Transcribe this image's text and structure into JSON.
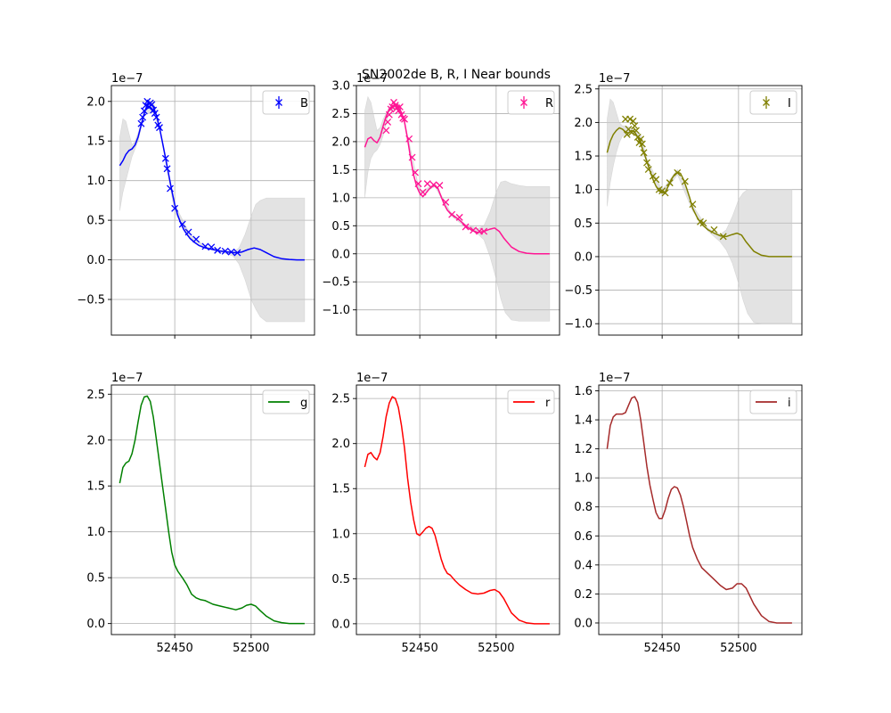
{
  "figure": {
    "title": "SN2002de  B, R, I Near bounds"
  },
  "chart_data": [
    {
      "type": "line",
      "panel": "top-left",
      "title": "",
      "xlabel": "",
      "ylabel": "",
      "xlim": [
        52411,
        537
      ],
      "ylim": [
        -0.95,
        2.2
      ],
      "scale_label": "1e−7",
      "yticks": [
        -0.5,
        0.0,
        0.5,
        1.0,
        1.5,
        2.0
      ],
      "yticklabels": [
        "−0.5",
        "0.0",
        "0.5",
        "1.0",
        "1.5",
        "2.0"
      ],
      "xticks": [
        52450,
        52500
      ],
      "xticklabels": [
        "",
        ""
      ],
      "grid": true,
      "legend": "top-right",
      "color": "#0000ff",
      "label": "B",
      "marker": "x",
      "points_x": [
        52428,
        52429,
        52430,
        52431,
        52432,
        52433,
        52434,
        52435,
        52436,
        52437,
        52438,
        52439,
        52440,
        52444,
        52445,
        52447,
        52450,
        52455,
        52459,
        52464,
        52470,
        52474,
        52478,
        52483,
        52487,
        52491
      ],
      "points_y": [
        1.72,
        1.8,
        1.88,
        1.95,
        2.0,
        1.93,
        1.98,
        1.96,
        1.89,
        1.85,
        1.8,
        1.7,
        1.67,
        1.28,
        1.15,
        0.9,
        0.65,
        0.45,
        0.35,
        0.26,
        0.17,
        0.16,
        0.12,
        0.11,
        0.1,
        0.09
      ],
      "curve_x": [
        52414,
        52416,
        52418,
        52420,
        52422,
        52424,
        52426,
        52428,
        52430,
        52432,
        52434,
        52436,
        52438,
        52440,
        52442,
        52444,
        52446,
        52448,
        52450,
        52452,
        52454,
        52456,
        52458,
        52460,
        52463,
        52466,
        52470,
        52475,
        52480,
        52485,
        52490,
        52494,
        52498,
        52502,
        52506,
        52510,
        52515,
        52520,
        52525,
        52530,
        52535
      ],
      "curve_y": [
        1.19,
        1.25,
        1.33,
        1.38,
        1.4,
        1.45,
        1.55,
        1.7,
        1.85,
        1.96,
        1.98,
        1.93,
        1.82,
        1.67,
        1.48,
        1.28,
        1.08,
        0.88,
        0.7,
        0.56,
        0.46,
        0.38,
        0.32,
        0.27,
        0.22,
        0.18,
        0.15,
        0.13,
        0.11,
        0.1,
        0.09,
        0.1,
        0.13,
        0.15,
        0.13,
        0.09,
        0.04,
        0.015,
        0.005,
        0.0,
        0.0
      ],
      "band_x": [
        52414,
        52416,
        52418,
        52420,
        52422,
        52424,
        52426,
        52430,
        52436,
        52440,
        52450,
        52460,
        52470,
        52480,
        52488,
        52492,
        52496,
        52500,
        52503,
        52506,
        52510,
        52515,
        52520,
        52525,
        52530,
        52535
      ],
      "band_upper": [
        1.55,
        1.78,
        1.75,
        1.6,
        1.45,
        1.5,
        1.6,
        1.87,
        2.0,
        1.68,
        0.7,
        0.32,
        0.17,
        0.12,
        0.1,
        0.15,
        0.32,
        0.55,
        0.7,
        0.75,
        0.78,
        0.78,
        0.78,
        0.78,
        0.78,
        0.78
      ],
      "band_lower": [
        0.62,
        0.85,
        1.0,
        1.15,
        1.3,
        1.4,
        1.5,
        1.83,
        1.86,
        1.66,
        0.6,
        0.28,
        0.15,
        0.1,
        0.05,
        -0.05,
        -0.25,
        -0.5,
        -0.62,
        -0.72,
        -0.78,
        -0.78,
        -0.78,
        -0.78,
        -0.78,
        -0.78
      ]
    },
    {
      "type": "line",
      "panel": "top-center",
      "title": "",
      "xlabel": "",
      "ylabel": "",
      "xlim": [
        52411,
        537
      ],
      "ylim": [
        -1.45,
        3.0
      ],
      "scale_label": "1e−7",
      "yticks": [
        -1.0,
        -0.5,
        0.0,
        0.5,
        1.0,
        1.5,
        2.0,
        2.5,
        3.0
      ],
      "yticklabels": [
        "−1.0",
        "−0.5",
        "0.0",
        "0.5",
        "1.0",
        "1.5",
        "2.0",
        "2.5",
        "3.0"
      ],
      "xticks": [
        52450,
        52500
      ],
      "xticklabels": [
        "",
        ""
      ],
      "grid": true,
      "legend": "top-right",
      "color": "#ff1493",
      "label": "R",
      "marker": "x",
      "points_x": [
        52428,
        52429,
        52430,
        52431,
        52432,
        52433,
        52434,
        52435,
        52436,
        52437,
        52438,
        52439,
        52440,
        52443,
        52445,
        52447,
        52449,
        52452,
        52455,
        52459,
        52463,
        52467,
        52471,
        52476,
        52480,
        52485,
        52489,
        52492
      ],
      "points_y": [
        2.2,
        2.35,
        2.48,
        2.58,
        2.62,
        2.7,
        2.65,
        2.6,
        2.55,
        2.62,
        2.48,
        2.42,
        2.4,
        2.05,
        1.72,
        1.45,
        1.25,
        1.1,
        1.25,
        1.23,
        1.22,
        0.92,
        0.7,
        0.65,
        0.48,
        0.42,
        0.4,
        0.4
      ],
      "curve_x": [
        52414,
        52416,
        52418,
        52420,
        52422,
        52424,
        52426,
        52428,
        52430,
        52432,
        52434,
        52436,
        52438,
        52440,
        52442,
        52444,
        52446,
        52448,
        52450,
        52452,
        52454,
        52456,
        52458,
        52460,
        52462,
        52464,
        52466,
        52468,
        52470,
        52473,
        52476,
        52480,
        52484,
        52488,
        52492,
        52496,
        52499,
        52502,
        52505,
        52510,
        52515,
        52520,
        52525,
        52530,
        52535
      ],
      "curve_y": [
        1.9,
        2.05,
        2.08,
        2.02,
        1.98,
        2.08,
        2.28,
        2.45,
        2.58,
        2.64,
        2.66,
        2.62,
        2.52,
        2.35,
        2.05,
        1.7,
        1.4,
        1.2,
        1.08,
        1.02,
        1.08,
        1.15,
        1.2,
        1.22,
        1.16,
        1.02,
        0.88,
        0.78,
        0.72,
        0.66,
        0.6,
        0.5,
        0.42,
        0.38,
        0.4,
        0.44,
        0.46,
        0.4,
        0.28,
        0.12,
        0.04,
        0.01,
        0.0,
        0.0,
        0.0
      ],
      "band_x": [
        52414,
        52416,
        52418,
        52420,
        52422,
        52424,
        52426,
        52430,
        52436,
        52440,
        52450,
        52460,
        52470,
        52480,
        52488,
        52492,
        52496,
        52500,
        52503,
        52506,
        52510,
        52515,
        52520,
        52525,
        52530,
        52535
      ],
      "band_upper": [
        2.55,
        2.8,
        2.7,
        2.45,
        2.2,
        2.25,
        2.4,
        2.62,
        2.68,
        2.37,
        1.1,
        1.25,
        0.75,
        0.52,
        0.45,
        0.5,
        0.75,
        1.1,
        1.28,
        1.3,
        1.25,
        1.22,
        1.2,
        1.2,
        1.2,
        1.2
      ],
      "band_lower": [
        1.0,
        1.45,
        1.7,
        1.8,
        1.85,
        1.95,
        2.1,
        2.54,
        2.6,
        2.33,
        1.06,
        1.2,
        0.69,
        0.47,
        0.35,
        0.25,
        -0.05,
        -0.45,
        -0.8,
        -1.05,
        -1.18,
        -1.2,
        -1.2,
        -1.2,
        -1.2,
        -1.2
      ]
    },
    {
      "type": "line",
      "panel": "top-right",
      "title": "",
      "xlabel": "",
      "ylabel": "",
      "xlim": [
        52411,
        537
      ],
      "ylim": [
        -1.17,
        2.55
      ],
      "scale_label": "1e−7",
      "yticks": [
        -1.0,
        -0.5,
        0.0,
        0.5,
        1.0,
        1.5,
        2.0,
        2.5
      ],
      "yticklabels": [
        "−1.0",
        "−0.5",
        "0.0",
        "0.5",
        "1.0",
        "1.5",
        "2.0",
        "2.5"
      ],
      "xticks": [
        52450,
        52500
      ],
      "xticklabels": [
        "",
        ""
      ],
      "grid": true,
      "legend": "top-right",
      "color": "#808000",
      "label": "I",
      "marker": "x",
      "points_x": [
        52426,
        52427,
        52428,
        52429,
        52430,
        52431,
        52432,
        52433,
        52434,
        52435,
        52436,
        52437,
        52438,
        52440,
        52441,
        52444,
        52446,
        52448,
        52450,
        52452,
        52455,
        52460,
        52465,
        52470,
        52475,
        52477,
        52484,
        52490
      ],
      "points_y": [
        2.05,
        1.82,
        1.9,
        2.05,
        1.85,
        2.02,
        1.95,
        1.88,
        1.78,
        1.7,
        1.75,
        1.68,
        1.55,
        1.4,
        1.3,
        1.2,
        1.15,
        1.0,
        0.98,
        0.95,
        1.1,
        1.25,
        1.12,
        0.78,
        0.52,
        0.5,
        0.4,
        0.3
      ],
      "curve_x": [
        52414,
        52416,
        52418,
        52420,
        52422,
        52424,
        52426,
        52428,
        52430,
        52432,
        52434,
        52436,
        52438,
        52440,
        52442,
        52444,
        52446,
        52448,
        52450,
        52452,
        52454,
        52456,
        52458,
        52460,
        52462,
        52464,
        52466,
        52468,
        52470,
        52473,
        52476,
        52480,
        52484,
        52488,
        52492,
        52496,
        52499,
        52502,
        52505,
        52510,
        52515,
        52520,
        52525,
        52530,
        52535
      ],
      "curve_y": [
        1.55,
        1.72,
        1.82,
        1.88,
        1.92,
        1.9,
        1.86,
        1.84,
        1.88,
        1.86,
        1.78,
        1.68,
        1.55,
        1.42,
        1.28,
        1.15,
        1.05,
        0.98,
        0.95,
        0.96,
        1.05,
        1.15,
        1.22,
        1.26,
        1.24,
        1.15,
        1.02,
        0.88,
        0.72,
        0.58,
        0.48,
        0.4,
        0.35,
        0.31,
        0.3,
        0.33,
        0.35,
        0.32,
        0.22,
        0.08,
        0.02,
        0.0,
        0.0,
        0.0,
        0.0
      ],
      "band_x": [
        52414,
        52416,
        52418,
        52420,
        52422,
        52424,
        52426,
        52430,
        52436,
        52440,
        52450,
        52460,
        52470,
        52480,
        52488,
        52492,
        52496,
        52500,
        52503,
        52506,
        52510,
        52515,
        52520,
        52525,
        52530,
        52535
      ],
      "band_upper": [
        2.05,
        2.35,
        2.3,
        2.15,
        2.0,
        1.95,
        1.95,
        1.92,
        1.82,
        1.46,
        0.99,
        1.3,
        0.76,
        0.42,
        0.33,
        0.4,
        0.6,
        0.85,
        0.95,
        1.0,
        1.0,
        1.0,
        1.0,
        1.0,
        1.0,
        1.0
      ],
      "band_lower": [
        0.75,
        1.1,
        1.35,
        1.55,
        1.7,
        1.8,
        1.8,
        1.86,
        1.74,
        1.38,
        0.91,
        1.22,
        0.68,
        0.38,
        0.22,
        0.1,
        -0.1,
        -0.4,
        -0.65,
        -0.85,
        -0.98,
        -1.0,
        -1.0,
        -1.0,
        -1.0,
        -1.0
      ]
    },
    {
      "type": "line",
      "panel": "bottom-left",
      "title": "",
      "xlabel": "",
      "ylabel": "",
      "xlim": [
        52411,
        537
      ],
      "ylim": [
        -0.12,
        2.6
      ],
      "scale_label": "1e−7",
      "yticks": [
        0.0,
        0.5,
        1.0,
        1.5,
        2.0,
        2.5
      ],
      "yticklabels": [
        "0.0",
        "0.5",
        "1.0",
        "1.5",
        "2.0",
        "2.5"
      ],
      "xticks": [
        52450,
        52500
      ],
      "xticklabels": [
        "52450",
        "52500"
      ],
      "grid": true,
      "legend": "top-right",
      "color": "#008000",
      "label": "g",
      "marker": "",
      "curve_x": [
        52414,
        52416,
        52418,
        52420,
        52422,
        52424,
        52426,
        52428,
        52430,
        52432,
        52434,
        52436,
        52438,
        52440,
        52442,
        52444,
        52446,
        52448,
        52450,
        52452,
        52455,
        52458,
        52461,
        52464,
        52467,
        52470,
        52475,
        52480,
        52485,
        52490,
        52494,
        52497,
        52500,
        52503,
        52506,
        52510,
        52515,
        52520,
        52525,
        52530,
        52535
      ],
      "curve_y": [
        1.53,
        1.7,
        1.75,
        1.77,
        1.85,
        2.0,
        2.2,
        2.38,
        2.47,
        2.48,
        2.42,
        2.25,
        2.0,
        1.75,
        1.5,
        1.25,
        1.0,
        0.78,
        0.64,
        0.57,
        0.5,
        0.42,
        0.32,
        0.28,
        0.26,
        0.25,
        0.21,
        0.19,
        0.17,
        0.15,
        0.17,
        0.2,
        0.21,
        0.19,
        0.14,
        0.08,
        0.03,
        0.01,
        0.0,
        0.0,
        0.0
      ]
    },
    {
      "type": "line",
      "panel": "bottom-center",
      "title": "",
      "xlabel": "",
      "ylabel": "",
      "xlim": [
        52411,
        537
      ],
      "ylim": [
        -0.12,
        2.65
      ],
      "scale_label": "1e−7",
      "yticks": [
        0.0,
        0.5,
        1.0,
        1.5,
        2.0,
        2.5
      ],
      "yticklabels": [
        "0.0",
        "0.5",
        "1.0",
        "1.5",
        "2.0",
        "2.5"
      ],
      "xticks": [
        52450,
        52500
      ],
      "xticklabels": [
        "52450",
        "52500"
      ],
      "grid": true,
      "legend": "top-right",
      "color": "#ff0000",
      "label": "r",
      "marker": "",
      "curve_x": [
        52414,
        52416,
        52418,
        52420,
        52422,
        52424,
        52426,
        52428,
        52430,
        52432,
        52434,
        52436,
        52438,
        52440,
        52442,
        52444,
        52446,
        52448,
        52450,
        52452,
        52454,
        52456,
        52458,
        52460,
        52462,
        52464,
        52466,
        52468,
        52470,
        52473,
        52476,
        52480,
        52484,
        52488,
        52492,
        52496,
        52499,
        52502,
        52505,
        52510,
        52515,
        52520,
        52525,
        52530,
        52535
      ],
      "curve_y": [
        1.74,
        1.88,
        1.9,
        1.85,
        1.82,
        1.9,
        2.08,
        2.3,
        2.45,
        2.52,
        2.5,
        2.4,
        2.2,
        1.95,
        1.62,
        1.35,
        1.15,
        1.0,
        0.98,
        1.02,
        1.06,
        1.08,
        1.06,
        0.98,
        0.85,
        0.72,
        0.62,
        0.56,
        0.54,
        0.48,
        0.43,
        0.38,
        0.34,
        0.33,
        0.34,
        0.37,
        0.38,
        0.35,
        0.28,
        0.12,
        0.04,
        0.01,
        0.0,
        0.0,
        0.0
      ]
    },
    {
      "type": "line",
      "panel": "bottom-right",
      "title": "",
      "xlabel": "",
      "ylabel": "",
      "xlim": [
        52411,
        537
      ],
      "ylim": [
        -0.08,
        1.64
      ],
      "scale_label": "1e−7",
      "yticks": [
        0.0,
        0.2,
        0.4,
        0.6,
        0.8,
        1.0,
        1.2,
        1.4,
        1.6
      ],
      "yticklabels": [
        "0.0",
        "0.2",
        "0.4",
        "0.6",
        "0.8",
        "1.0",
        "1.2",
        "1.4",
        "1.6"
      ],
      "xticks": [
        52450,
        52500
      ],
      "xticklabels": [
        "52450",
        "52500"
      ],
      "grid": true,
      "legend": "top-right",
      "color": "#a52a2a",
      "label": "i",
      "marker": "",
      "curve_x": [
        52414,
        52416,
        52418,
        52420,
        52422,
        52424,
        52426,
        52428,
        52430,
        52432,
        52434,
        52436,
        52438,
        52440,
        52442,
        52444,
        52446,
        52448,
        52450,
        52452,
        52454,
        52456,
        52458,
        52460,
        52462,
        52464,
        52466,
        52468,
        52470,
        52473,
        52476,
        52480,
        52484,
        52488,
        52492,
        52496,
        52499,
        52502,
        52505,
        52510,
        52515,
        52520,
        52525,
        52530,
        52535
      ],
      "curve_y": [
        1.2,
        1.36,
        1.42,
        1.44,
        1.44,
        1.44,
        1.45,
        1.5,
        1.55,
        1.56,
        1.52,
        1.4,
        1.24,
        1.08,
        0.95,
        0.85,
        0.76,
        0.72,
        0.72,
        0.78,
        0.86,
        0.92,
        0.94,
        0.93,
        0.88,
        0.8,
        0.7,
        0.6,
        0.52,
        0.44,
        0.38,
        0.34,
        0.3,
        0.26,
        0.23,
        0.24,
        0.27,
        0.27,
        0.24,
        0.13,
        0.05,
        0.01,
        0.0,
        0.0,
        0.0
      ]
    }
  ]
}
